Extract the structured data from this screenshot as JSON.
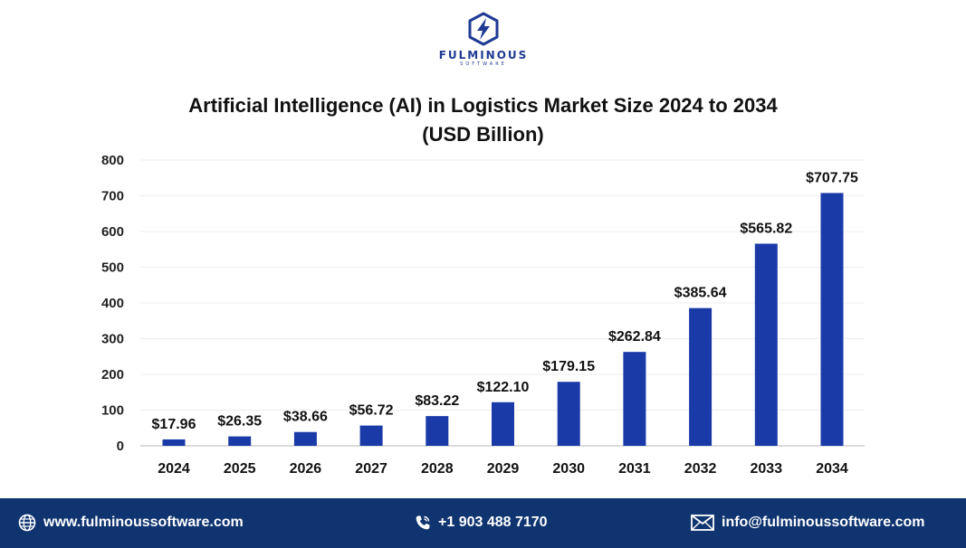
{
  "brand": {
    "name": "FULMINOUS",
    "tagline": "SOFTWARE"
  },
  "title": {
    "line1": "Artificial Intelligence (AI) in Logistics Market Size 2024 to 2034",
    "line2": "(USD Billion)"
  },
  "chart_data": {
    "type": "bar",
    "title": "Artificial Intelligence (AI) in Logistics Market Size 2024 to 2034 (USD Billion)",
    "xlabel": "",
    "ylabel": "",
    "ylim": [
      0,
      800
    ],
    "yticks": [
      0,
      100,
      200,
      300,
      400,
      500,
      600,
      700,
      800
    ],
    "grid": true,
    "categories": [
      "2024",
      "2025",
      "2026",
      "2027",
      "2028",
      "2029",
      "2030",
      "2031",
      "2032",
      "2033",
      "2034"
    ],
    "values": [
      17.96,
      26.35,
      38.66,
      56.72,
      83.22,
      122.1,
      179.15,
      262.84,
      385.64,
      565.82,
      707.75
    ],
    "data_labels": [
      "$17.96",
      "$26.35",
      "$38.66",
      "$56.72",
      "$83.22",
      "$122.10",
      "$179.15",
      "$262.84",
      "$385.64",
      "$565.82",
      "$707.75"
    ],
    "bar_color": "#1a3aa8"
  },
  "footer": {
    "website": "www.fulminoussoftware.com",
    "phone": "+1 903 488 7170",
    "email": "info@fulminoussoftware.com",
    "background": "#0f3470",
    "icons": [
      "globe-icon",
      "phone-icon",
      "mail-icon"
    ]
  }
}
